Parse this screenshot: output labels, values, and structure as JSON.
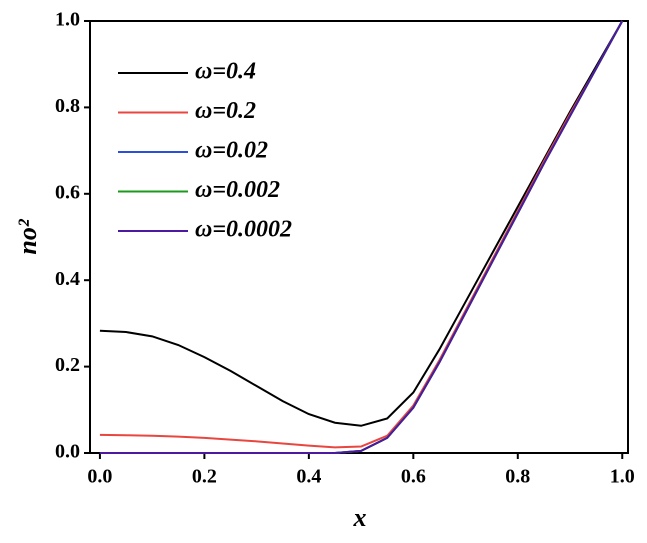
{
  "chart_data": {
    "type": "line",
    "xlabel": "x",
    "ylabel": "no²",
    "x": [
      0,
      0.05,
      0.1,
      0.15,
      0.2,
      0.25,
      0.3,
      0.35,
      0.4,
      0.45,
      0.5,
      0.55,
      0.6,
      0.65,
      0.7,
      0.75,
      0.8,
      0.85,
      0.9,
      0.95,
      1.0
    ],
    "series": [
      {
        "name": "ω=0.4",
        "color": "#000000",
        "values": [
          0.283,
          0.28,
          0.27,
          0.25,
          0.222,
          0.19,
          0.155,
          0.12,
          0.09,
          0.07,
          0.063,
          0.08,
          0.14,
          0.24,
          0.35,
          0.46,
          0.57,
          0.68,
          0.79,
          0.895,
          1.0
        ]
      },
      {
        "name": "ω=0.2",
        "color": "#e8463f",
        "values": [
          0.042,
          0.041,
          0.04,
          0.038,
          0.035,
          0.031,
          0.027,
          0.022,
          0.017,
          0.013,
          0.015,
          0.04,
          0.11,
          0.215,
          0.33,
          0.445,
          0.56,
          0.675,
          0.785,
          0.89,
          1.0
        ]
      },
      {
        "name": "ω=0.02",
        "color": "#2b4fd8",
        "values": [
          0,
          0,
          0,
          0,
          0,
          0,
          0,
          0,
          0,
          0,
          0.005,
          0.035,
          0.105,
          0.21,
          0.325,
          0.44,
          0.555,
          0.67,
          0.78,
          0.89,
          1.0
        ]
      },
      {
        "name": "ω=0.002",
        "color": "#1a9a1a",
        "values": [
          0,
          0,
          0,
          0,
          0,
          0,
          0,
          0,
          0,
          0,
          0.005,
          0.035,
          0.105,
          0.21,
          0.325,
          0.44,
          0.555,
          0.67,
          0.78,
          0.89,
          1.0
        ]
      },
      {
        "name": "ω=0.0002",
        "color": "#4b1aa0",
        "values": [
          0,
          0,
          0,
          0,
          0,
          0,
          0,
          0,
          0,
          0,
          0.005,
          0.035,
          0.105,
          0.21,
          0.325,
          0.44,
          0.555,
          0.67,
          0.78,
          0.89,
          1.0
        ]
      }
    ],
    "xlim": [
      -0.019,
      1.011
    ],
    "ylim": [
      0,
      1
    ],
    "xticks": [
      {
        "value": 0,
        "label": "0.0"
      },
      {
        "value": 0.2,
        "label": "0.2"
      },
      {
        "value": 0.4,
        "label": "0.4"
      },
      {
        "value": 0.6,
        "label": "0.6"
      },
      {
        "value": 0.8,
        "label": "0.8"
      },
      {
        "value": 1.0,
        "label": "1.0"
      }
    ],
    "yticks": [
      {
        "value": 0,
        "label": "0.0"
      },
      {
        "value": 0.2,
        "label": "0.2"
      },
      {
        "value": 0.4,
        "label": "0.4"
      },
      {
        "value": 0.6,
        "label": "0.6"
      },
      {
        "value": 0.8,
        "label": "0.8"
      },
      {
        "value": 1.0,
        "label": "1.0"
      }
    ],
    "legend": "upper left",
    "grid": false
  }
}
